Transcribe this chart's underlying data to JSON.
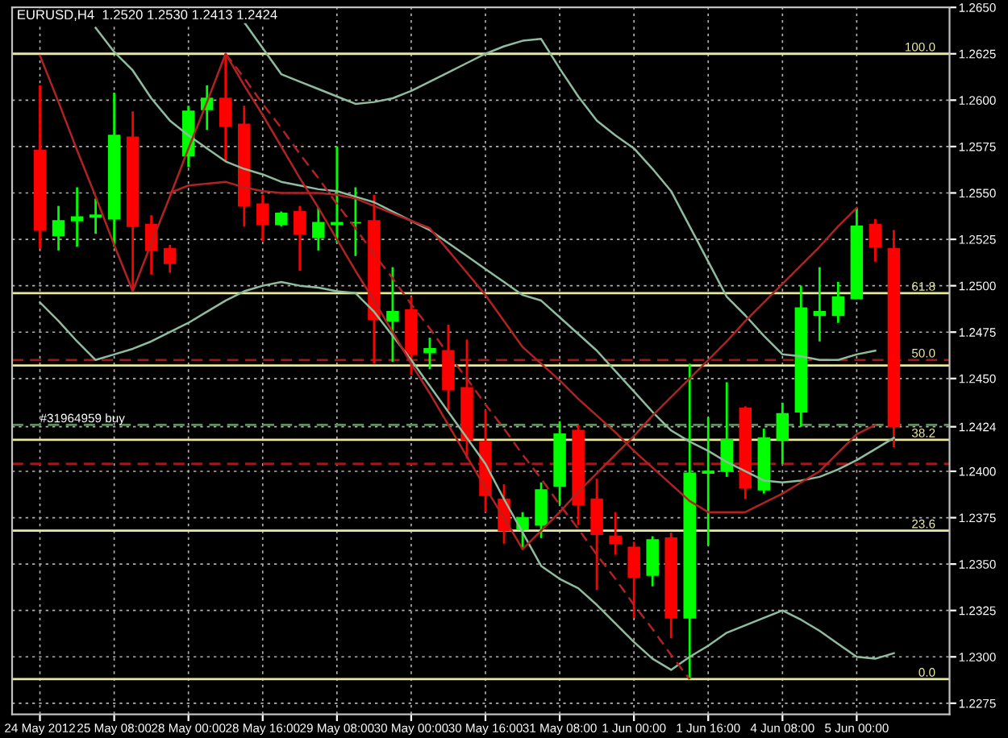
{
  "chart_data": {
    "type": "candlestick",
    "title": "EURUSD,H4  1.2520 1.2530 1.2413 1.2424",
    "categories": [
      "24 May 2012",
      null,
      null,
      null,
      "25 May 08:00",
      null,
      null,
      null,
      "28 May 00:00",
      null,
      null,
      null,
      "28 May 16:00",
      null,
      null,
      null,
      "29 May 08:00",
      null,
      null,
      null,
      "30 May 00:00",
      null,
      null,
      null,
      "30 May 16:00",
      null,
      null,
      null,
      "31 May 08:00",
      null,
      null,
      null,
      "1 Jun 00:00",
      null,
      null,
      null,
      "1 Jun 16:00",
      null,
      null,
      null,
      "4 Jun 08:00",
      null,
      null,
      null,
      "5 Jun 00:00",
      null,
      null
    ],
    "series": [
      {
        "type": "line",
        "color": "#8fbc9f",
        "values": [
          null,
          null,
          null,
          null,
          null,
          null,
          null,
          null,
          null,
          null,
          null,
          1.2642,
          1.2628,
          1.2614,
          1.261,
          1.2606,
          1.2602,
          1.2598,
          1.2599,
          1.2601,
          1.2605,
          1.261,
          1.2615,
          1.262,
          1.2625,
          1.2629,
          1.2632,
          1.2633,
          1.2617,
          1.2602,
          1.2589,
          1.2581,
          1.2574,
          1.2563,
          1.2551,
          1.2532,
          1.2513,
          1.2494,
          1.2484,
          1.2473,
          1.2463,
          1.2462,
          1.246,
          1.246,
          1.2463,
          1.2465,
          null
        ]
      },
      {
        "type": "line",
        "color": "#8fbc9f",
        "values": [
          null,
          null,
          null,
          1.2639,
          1.2626,
          1.2616,
          1.2601,
          1.2589,
          1.2581,
          1.2574,
          1.2567,
          1.2563,
          1.256,
          1.2556,
          1.2554,
          1.2552,
          1.2551,
          1.2548,
          1.2545,
          1.254,
          1.2535,
          1.253,
          1.2523,
          1.2516,
          1.2509,
          1.2502,
          1.2495,
          1.2492,
          1.2483,
          1.2474,
          1.2465,
          1.2454,
          1.2443,
          1.2432,
          1.2422,
          1.2416,
          1.2411,
          1.2405,
          1.24,
          1.2395,
          1.2394,
          1.2395,
          1.2397,
          1.2401,
          1.2406,
          1.2412,
          1.2418
        ]
      },
      {
        "type": "line",
        "color": "#8fbc9f",
        "values": [
          1.2491,
          1.2481,
          1.247,
          1.246,
          1.2463,
          1.2466,
          1.247,
          1.2475,
          1.248,
          1.2486,
          1.2492,
          1.2497,
          1.25,
          1.2502,
          1.25,
          1.2499,
          1.2497,
          1.2496,
          1.2486,
          1.2473,
          1.246,
          1.2446,
          1.2432,
          1.2418,
          1.2404,
          1.2385,
          1.2367,
          1.2349,
          1.2342,
          1.2337,
          1.2328,
          1.2318,
          1.2308,
          1.2299,
          1.2293,
          1.23,
          1.2306,
          1.2313,
          1.2317,
          1.2321,
          1.2325,
          1.232,
          1.2314,
          1.2307,
          1.23,
          1.2299,
          1.2302
        ]
      },
      {
        "type": "line",
        "color": "#b22222",
        "values": [
          null,
          null,
          null,
          null,
          null,
          null,
          null,
          1.255,
          1.2554,
          1.2555,
          1.2556,
          1.2553,
          1.2551,
          1.255,
          1.255,
          1.255,
          1.2549,
          1.2547,
          1.2543,
          1.2539,
          1.2535,
          1.2531,
          1.2519,
          1.2507,
          1.2495,
          1.2481,
          1.2467,
          1.2458,
          1.2449,
          1.2439,
          1.243,
          1.2421,
          1.2411,
          1.2402,
          1.2393,
          1.2384,
          1.2378,
          1.2378,
          1.2378,
          1.2383,
          1.2388,
          1.2394,
          1.24,
          1.241,
          1.242,
          1.2425,
          null
        ]
      },
      {
        "type": "line",
        "color": "#b22222",
        "values": [
          1.2624,
          1.2599,
          1.2573,
          1.2548,
          1.2522,
          1.2497,
          1.2523,
          1.2548,
          1.2574,
          1.2599,
          1.2625,
          1.2608,
          1.2592,
          1.2575,
          1.2558,
          1.2542,
          1.2525,
          1.2508,
          1.2492,
          1.2475,
          1.2458,
          1.2442,
          1.2425,
          1.2408,
          1.2391,
          1.2375,
          1.2358,
          1.2368,
          1.2378,
          1.2389,
          1.2399,
          1.2409,
          1.2419,
          1.243,
          1.244,
          1.245,
          1.246,
          1.247,
          1.2481,
          1.2491,
          1.2501,
          1.2511,
          1.2521,
          1.2532,
          1.2542,
          null,
          null
        ]
      },
      {
        "type": "line",
        "color": "#b22222",
        "line_style": "dashed",
        "values": [
          null,
          null,
          null,
          null,
          null,
          null,
          null,
          null,
          null,
          null,
          1.2625,
          1.2612,
          1.2598,
          1.2585,
          1.2571,
          1.2558,
          1.2544,
          1.2531,
          1.2517,
          1.2504,
          1.249,
          1.2477,
          1.2463,
          1.245,
          1.2436,
          1.2423,
          1.2409,
          1.2396,
          1.2382,
          1.2369,
          1.2355,
          1.2342,
          1.2328,
          1.2315,
          1.2301,
          1.2288,
          null,
          null,
          null,
          null,
          null,
          null,
          null,
          null,
          null,
          null,
          null
        ]
      },
      {
        "ohlc": [
          [
            1.2573,
            1.2608,
            1.252,
            1.253
          ],
          [
            1.2527,
            1.2543,
            1.2519,
            1.2535
          ],
          [
            1.2535,
            1.2553,
            1.2521,
            1.2537
          ],
          [
            1.2537,
            1.2547,
            1.2528,
            1.2538
          ],
          [
            1.2536,
            1.2604,
            1.2521,
            1.2581
          ],
          [
            1.258,
            1.2594,
            1.2497,
            1.2532
          ],
          [
            1.2533,
            1.2538,
            1.2506,
            1.2519
          ],
          [
            1.252,
            1.2522,
            1.2507,
            1.2512
          ],
          [
            1.257,
            1.2597,
            1.2564,
            1.2594
          ],
          [
            1.2595,
            1.2608,
            1.2584,
            1.2601
          ],
          [
            1.2601,
            1.2625,
            1.2567,
            1.2586
          ],
          [
            1.2587,
            1.2597,
            1.2532,
            1.2543
          ],
          [
            1.2544,
            1.2549,
            1.2524,
            1.2533
          ],
          [
            1.2533,
            1.254,
            1.2532,
            1.2539
          ],
          [
            1.254,
            1.2543,
            1.2508,
            1.2528
          ],
          [
            1.2526,
            1.2542,
            1.2519,
            1.2534
          ],
          [
            1.2533,
            1.2575,
            1.2523,
            1.2534
          ],
          [
            1.2534,
            1.2553,
            1.2516,
            1.2534
          ],
          [
            1.2535,
            1.2549,
            1.2458,
            1.2482
          ],
          [
            1.2481,
            1.251,
            1.2459,
            1.2486
          ],
          [
            1.2487,
            1.2494,
            1.2452,
            1.2463
          ],
          [
            1.2464,
            1.2472,
            1.2455,
            1.2466
          ],
          [
            1.2465,
            1.2479,
            1.2433,
            1.2444
          ],
          [
            1.2445,
            1.2471,
            1.2407,
            1.2417
          ],
          [
            1.2416,
            1.2433,
            1.2378,
            1.2387
          ],
          [
            1.2385,
            1.2393,
            1.2361,
            1.2368
          ],
          [
            1.2369,
            1.2378,
            1.2358,
            1.2375
          ],
          [
            1.2371,
            1.2394,
            1.2364,
            1.239
          ],
          [
            1.2392,
            1.2427,
            1.2382,
            1.242
          ],
          [
            1.2422,
            1.2425,
            1.2371,
            1.2382
          ],
          [
            1.2385,
            1.2396,
            1.2336,
            1.2366
          ],
          [
            1.2365,
            1.2378,
            1.2355,
            1.2361
          ],
          [
            1.2359,
            1.2362,
            1.2321,
            1.2343
          ],
          [
            1.2344,
            1.2365,
            1.2338,
            1.2363
          ],
          [
            1.2364,
            1.2367,
            1.231,
            1.2321
          ],
          [
            1.2321,
            1.2458,
            1.2288,
            1.2399
          ],
          [
            1.2399,
            1.2429,
            1.236,
            1.24
          ],
          [
            1.24,
            1.2448,
            1.2397,
            1.2417
          ],
          [
            1.2434,
            1.2435,
            1.2385,
            1.2391
          ],
          [
            1.239,
            1.2423,
            1.2388,
            1.2418
          ],
          [
            1.2417,
            1.2437,
            1.2404,
            1.2431
          ],
          [
            1.2432,
            1.25,
            1.2424,
            1.2488
          ],
          [
            1.2484,
            1.251,
            1.247,
            1.2486
          ],
          [
            1.2484,
            1.2502,
            1.248,
            1.2494
          ],
          [
            1.2493,
            1.2542,
            1.2493,
            1.2532
          ],
          [
            1.2533,
            1.2536,
            1.2513,
            1.2521
          ],
          [
            1.252,
            1.253,
            1.2413,
            1.2424
          ]
        ],
        "colors": [
          "#ff0000",
          "#00ff00",
          "#00ff00",
          "#00ff00",
          "#00ff00",
          "#ff0000",
          "#ff0000",
          "#ff0000",
          "#00ff00",
          "#00ff00",
          "#ff0000",
          "#ff0000",
          "#ff0000",
          "#00ff00",
          "#ff0000",
          "#00ff00",
          "#00ff00",
          "#00ff00",
          "#ff0000",
          "#00ff00",
          "#ff0000",
          "#00ff00",
          "#ff0000",
          "#ff0000",
          "#ff0000",
          "#ff0000",
          "#00ff00",
          "#00ff00",
          "#00ff00",
          "#ff0000",
          "#ff0000",
          "#ff0000",
          "#ff0000",
          "#00ff00",
          "#ff0000",
          "#00ff00",
          "#00ff00",
          "#00ff00",
          "#ff0000",
          "#00ff00",
          "#00ff00",
          "#00ff00",
          "#00ff00",
          "#00ff00",
          "#00ff00",
          "#ff0000",
          "#ff0000"
        ]
      }
    ],
    "ylim": [
      1.2269,
      1.265
    ],
    "yticks": [
      {
        "value": 1.2275,
        "label": "1.2275"
      },
      {
        "value": 1.23,
        "label": "1.2300"
      },
      {
        "value": 1.2325,
        "label": "1.2325"
      },
      {
        "value": 1.235,
        "label": "1.2350"
      },
      {
        "value": 1.2375,
        "label": "1.2375"
      },
      {
        "value": 1.24,
        "label": "1.2400"
      },
      {
        "value": 1.2424,
        "label": "1.2424"
      },
      {
        "value": 1.245,
        "label": "1.2450"
      },
      {
        "value": 1.2475,
        "label": "1.2475"
      },
      {
        "value": 1.25,
        "label": "1.2500"
      },
      {
        "value": 1.2525,
        "label": "1.2525"
      },
      {
        "value": 1.255,
        "label": "1.2550"
      },
      {
        "value": 1.2575,
        "label": "1.2575"
      },
      {
        "value": 1.26,
        "label": "1.2600"
      },
      {
        "value": 1.2625,
        "label": "1.2625"
      },
      {
        "value": 1.265,
        "label": "1.2650"
      }
    ],
    "ref_lines": [
      {
        "axis": "y",
        "value": 1.2625,
        "color": "#e8e8a0"
      },
      {
        "axis": "y",
        "value": 1.2496,
        "color": "#e8e8a0"
      },
      {
        "axis": "y",
        "value": 1.2457,
        "color": "#e8e8a0"
      },
      {
        "axis": "y",
        "value": 1.2417,
        "color": "#e8e8a0"
      },
      {
        "axis": "y",
        "value": 1.2368,
        "color": "#e8e8a0"
      },
      {
        "axis": "y",
        "value": 1.2288,
        "color": "#e8e8a0"
      },
      {
        "axis": "y",
        "value": 1.246,
        "color": "#a01818",
        "line_style": "dashed"
      },
      {
        "axis": "y",
        "value": 1.2404,
        "color": "#a01818",
        "line_style": "dashed"
      },
      {
        "axis": "y",
        "value": 1.2425,
        "color": "#5f8f5f",
        "line_style": "dashed"
      }
    ],
    "annotations": [
      {
        "text": "#31964959 buy",
        "x": "24 May 2012",
        "y": 1.2425
      },
      {
        "text": "100.0",
        "y": 1.2625
      },
      {
        "text": "61.8",
        "y": 1.2496
      },
      {
        "text": "50.0",
        "y": 1.246
      },
      {
        "text": "38.2",
        "y": 1.2417
      },
      {
        "text": "23.6",
        "y": 1.2368
      },
      {
        "text": "0.0",
        "y": 1.2288
      }
    ],
    "grid": true
  }
}
